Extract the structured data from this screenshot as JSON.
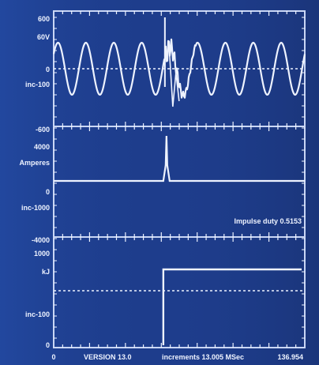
{
  "panel1": {
    "ticks": [
      "600",
      "60V",
      "0",
      "inc-100",
      "-600"
    ],
    "wave_cycles": 9,
    "wave_amplitude": 1.0,
    "fault_position": 0.38
  },
  "panel2": {
    "ticks": [
      "4000",
      "Amperes",
      "0",
      "inc-1000",
      "-4000"
    ],
    "annotation": "Impulse duty 0.5153",
    "peak": 4000
  },
  "panel3": {
    "ticks": [
      "1000",
      "kJ",
      "inc-100",
      "0"
    ],
    "step_level": 1000
  },
  "footer": {
    "start": "0",
    "version": "VERSION 13.0",
    "increments": "increments 13.005 MSec",
    "end": "136.954"
  },
  "colors": {
    "background": "#1e3d8c",
    "trace": "#eef3ff",
    "frame": "#c9d6f5"
  }
}
